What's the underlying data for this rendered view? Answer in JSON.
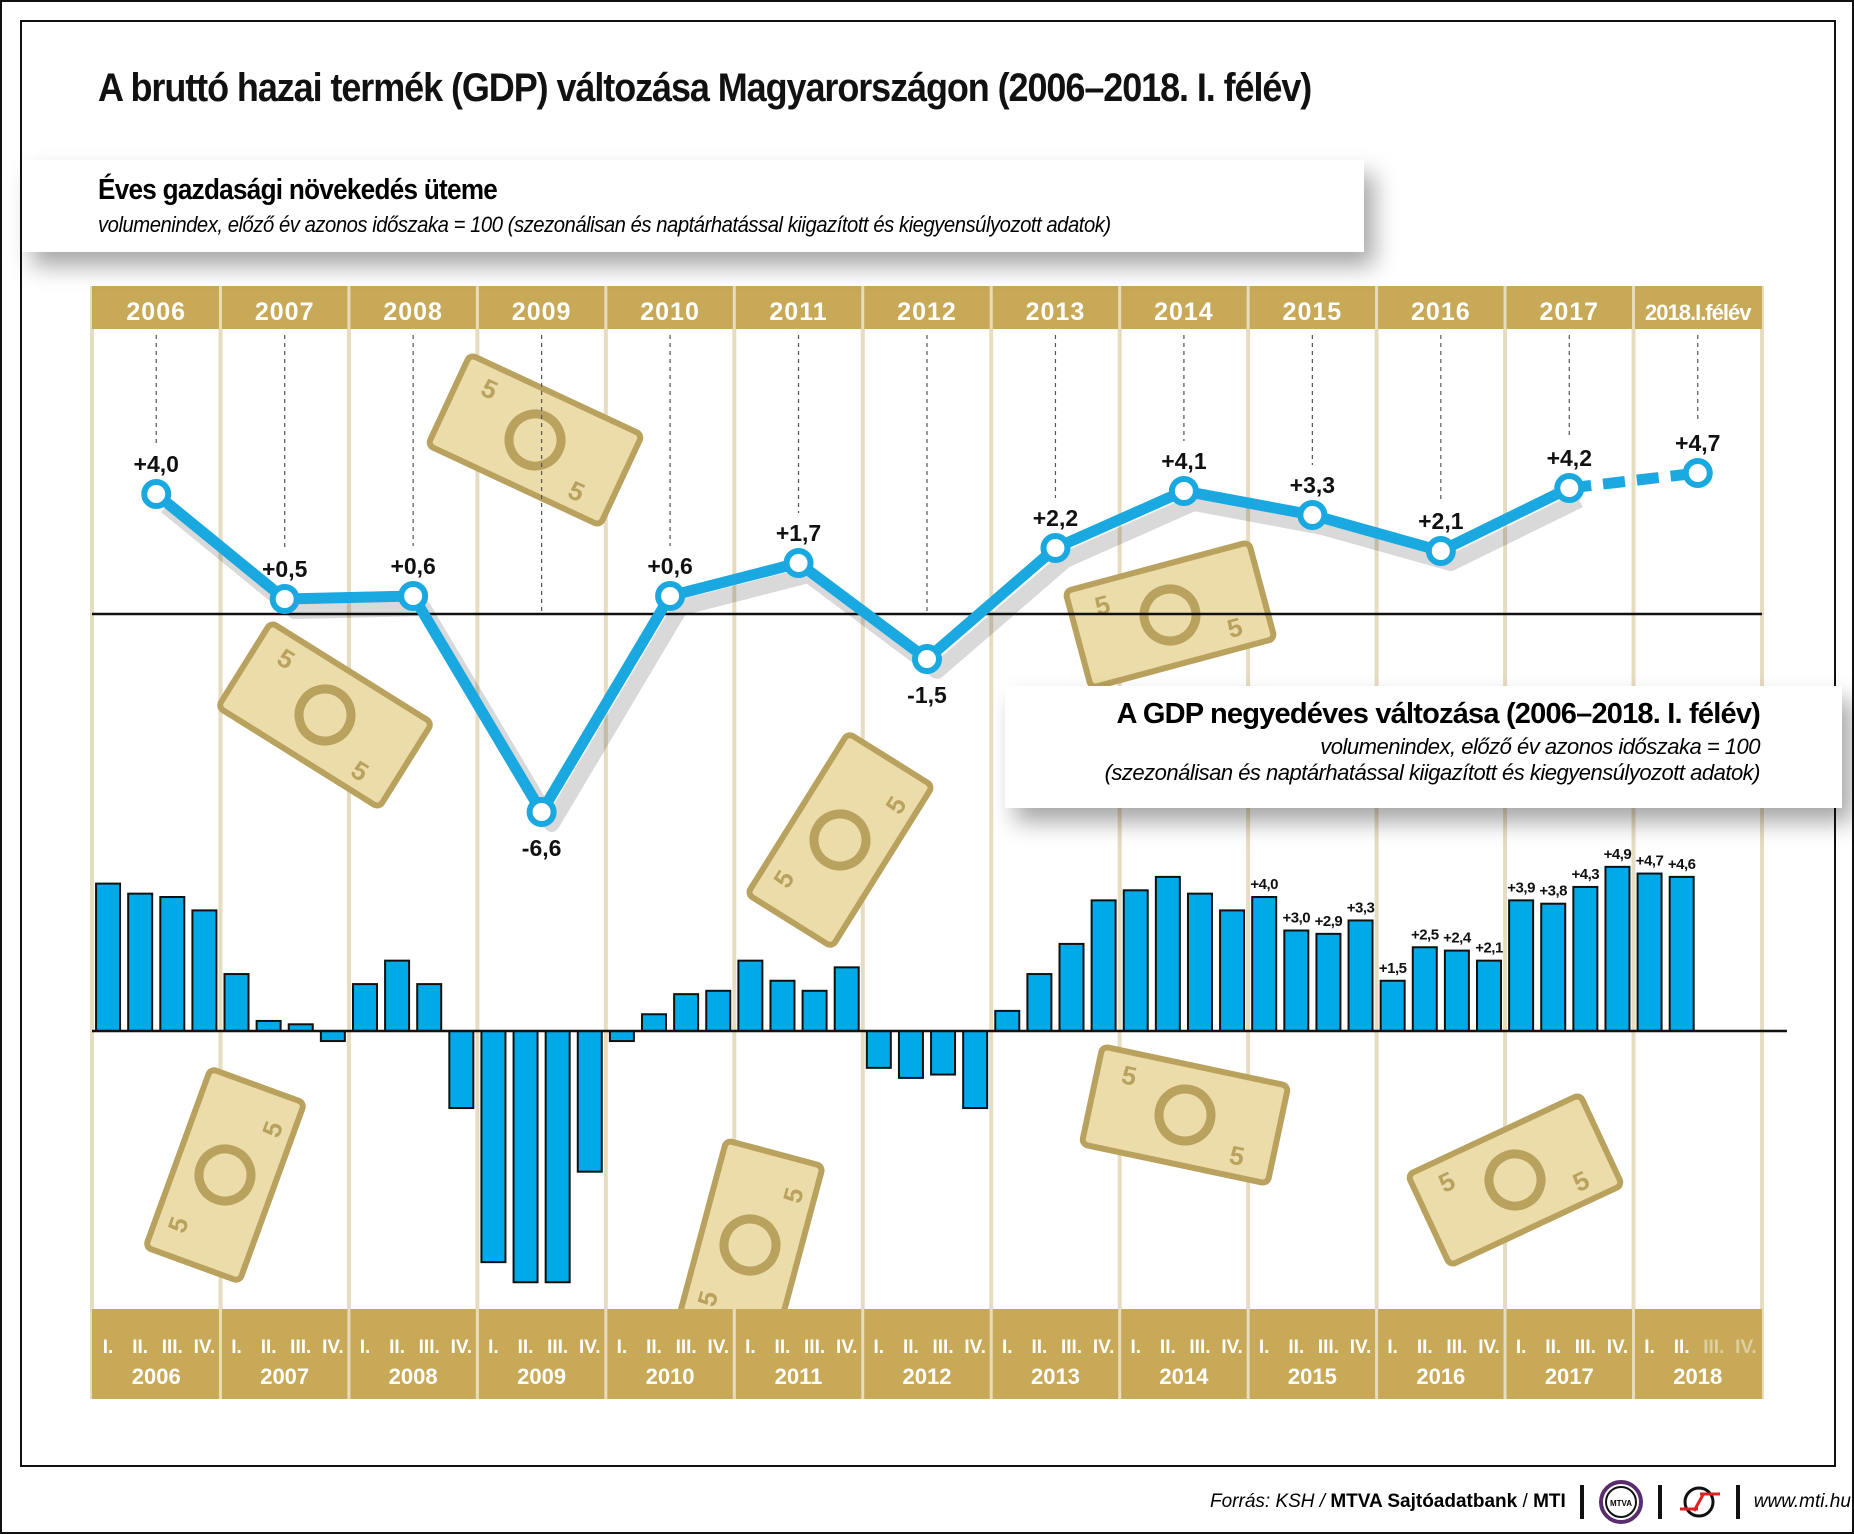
{
  "title": "A bruttó hazai termék (GDP) változása Magyarországon (2006–2018. I. félév)",
  "annual_box": {
    "heading": "Éves gazdasági növekedés üteme",
    "subtitle": "volumenindex, előző év azonos időszaka = 100 (szezonálisan és naptárhatással kiigazított és kiegyensúlyozott adatok)"
  },
  "quarterly_box": {
    "heading": "A GDP negyedéves változása (2006–2018. I. félév)",
    "subtitle_line1": "volumenindex, előző év azonos időszaka = 100",
    "subtitle_line2": "(szezonálisan és naptárhatással kiigazított és kiegyensúlyozott adatok)"
  },
  "colors": {
    "gold": "#c8a957",
    "line": "#1aa8e0",
    "bar": "#00a9e8",
    "bill": "#ecdcaa",
    "bill_dark": "#b9a15e"
  },
  "chart_data": [
    {
      "type": "line",
      "categories": [
        "2006",
        "2007",
        "2008",
        "2009",
        "2010",
        "2011",
        "2012",
        "2013",
        "2014",
        "2015",
        "2016",
        "2017",
        "2018.I.félév"
      ],
      "values": [
        4.0,
        0.5,
        0.6,
        -6.6,
        0.6,
        1.7,
        -1.5,
        2.2,
        4.1,
        3.3,
        2.1,
        4.2,
        4.7
      ],
      "labels": [
        "+4,0",
        "+0,5",
        "+0,6",
        "-6,6",
        "+0,6",
        "+1,7",
        "-1,5",
        "+2,2",
        "+4,1",
        "+3,3",
        "+2,1",
        "+4,2",
        "+4,7"
      ],
      "dashed_last_segment": true,
      "zero_line": true
    },
    {
      "type": "bar",
      "quarter_labels": [
        "I.",
        "II.",
        "III.",
        "IV."
      ],
      "years": [
        "2006",
        "2007",
        "2008",
        "2009",
        "2010",
        "2011",
        "2012",
        "2013",
        "2014",
        "2015",
        "2016",
        "2017",
        "2018"
      ],
      "values": [
        4.4,
        4.1,
        4.0,
        3.6,
        1.7,
        0.3,
        0.2,
        -0.3,
        1.4,
        2.1,
        1.4,
        -2.3,
        -6.9,
        -7.5,
        -7.5,
        -4.2,
        -0.3,
        0.5,
        1.1,
        1.2,
        2.1,
        1.5,
        1.2,
        1.9,
        -1.1,
        -1.4,
        -1.3,
        -2.3,
        0.6,
        1.7,
        2.6,
        3.9,
        4.2,
        4.6,
        4.1,
        3.6,
        4.0,
        3.0,
        2.9,
        3.3,
        1.5,
        2.5,
        2.4,
        2.1,
        3.9,
        3.8,
        4.3,
        4.9,
        4.7,
        4.6
      ],
      "data_labels": {
        "36": "+4,0",
        "37": "+3,0",
        "38": "+2,9",
        "39": "+3,3",
        "40": "+1,5",
        "41": "+2,5",
        "42": "+2,4",
        "43": "+2,1",
        "44": "+3,9",
        "45": "+3,8",
        "46": "+4,3",
        "47": "+4,9",
        "48": "+4,7",
        "49": "+4,6"
      },
      "zero_line": true
    }
  ],
  "footer": {
    "source_prefix": "Forrás: KSH / ",
    "source_bold": "MTVA Sajtóadatbank",
    "source_sep": " / ",
    "source_mti": "MTI",
    "logo1_text": "MTVA",
    "website": "www.mti.hu"
  }
}
